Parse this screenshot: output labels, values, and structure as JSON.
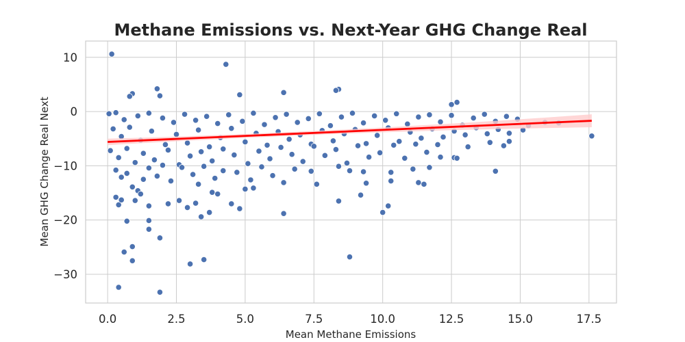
{
  "chart_data": {
    "type": "scatter",
    "title": "Methane Emissions vs. Next-Year GHG Change Real",
    "xlabel": "Mean Methane Emissions",
    "ylabel": "Mean GHG Change Real Next",
    "xlim": [
      -0.8,
      18.5
    ],
    "ylim": [
      -35.3,
      13.0
    ],
    "xticks": [
      0.0,
      2.5,
      5.0,
      7.5,
      10.0,
      12.5,
      15.0,
      17.5
    ],
    "xtick_labels": [
      "0.0",
      "2.5",
      "5.0",
      "7.5",
      "10.0",
      "12.5",
      "15.0",
      "17.5"
    ],
    "yticks": [
      -30,
      -20,
      -10,
      0,
      10
    ],
    "ytick_labels": [
      "−30",
      "−20",
      "−10",
      "0",
      "10"
    ],
    "grid": true,
    "colors": {
      "points": "#4c72b0",
      "point_edge": "#ffffff",
      "trend": "#ff0000",
      "band": "#ffcccc",
      "grid": "#cccccc",
      "frame": "#cccccc"
    },
    "series": [
      {
        "points": [
          [
            0.15,
            10.6
          ],
          [
            4.3,
            8.7
          ],
          [
            1.8,
            4.2
          ],
          [
            1.9,
            2.9
          ],
          [
            0.9,
            3.3
          ],
          [
            0.8,
            2.8
          ],
          [
            4.8,
            3.1
          ],
          [
            6.4,
            3.5
          ],
          [
            8.4,
            4.1
          ],
          [
            8.3,
            3.9
          ],
          [
            12.7,
            1.7
          ],
          [
            12.5,
            1.3
          ],
          [
            0.05,
            -0.4
          ],
          [
            0.3,
            -0.2
          ],
          [
            0.6,
            -1.5
          ],
          [
            1.1,
            -0.8
          ],
          [
            1.5,
            -0.3
          ],
          [
            2.0,
            -1.2
          ],
          [
            2.4,
            -2.0
          ],
          [
            2.8,
            -0.5
          ],
          [
            3.2,
            -1.6
          ],
          [
            3.6,
            -0.9
          ],
          [
            4.0,
            -2.2
          ],
          [
            4.4,
            -0.6
          ],
          [
            4.9,
            -1.8
          ],
          [
            5.3,
            -0.3
          ],
          [
            5.7,
            -2.4
          ],
          [
            6.1,
            -1.1
          ],
          [
            6.5,
            -0.5
          ],
          [
            6.9,
            -2.0
          ],
          [
            7.3,
            -1.3
          ],
          [
            7.7,
            -0.4
          ],
          [
            8.1,
            -2.6
          ],
          [
            8.5,
            -1.0
          ],
          [
            8.9,
            -0.3
          ],
          [
            9.3,
            -2.1
          ],
          [
            9.7,
            -0.8
          ],
          [
            10.1,
            -1.6
          ],
          [
            10.5,
            -0.4
          ],
          [
            10.9,
            -2.3
          ],
          [
            11.3,
            -1.0
          ],
          [
            11.7,
            -0.6
          ],
          [
            12.1,
            -1.9
          ],
          [
            12.5,
            -0.7
          ],
          [
            12.9,
            -2.5
          ],
          [
            13.3,
            -1.2
          ],
          [
            13.7,
            -0.5
          ],
          [
            14.1,
            -1.8
          ],
          [
            14.5,
            -0.9
          ],
          [
            14.9,
            -1.4
          ],
          [
            15.3,
            -2.6
          ],
          [
            15.9,
            -2.0
          ],
          [
            16.4,
            -2.1
          ],
          [
            17.6,
            -4.5
          ],
          [
            0.2,
            -3.2
          ],
          [
            0.5,
            -4.6
          ],
          [
            0.8,
            -2.9
          ],
          [
            1.2,
            -5.3
          ],
          [
            1.6,
            -3.6
          ],
          [
            2.1,
            -6.1
          ],
          [
            2.5,
            -4.2
          ],
          [
            2.9,
            -5.8
          ],
          [
            3.3,
            -3.4
          ],
          [
            3.7,
            -6.5
          ],
          [
            4.1,
            -4.8
          ],
          [
            4.5,
            -3.1
          ],
          [
            5.0,
            -5.6
          ],
          [
            5.4,
            -4.0
          ],
          [
            5.8,
            -6.2
          ],
          [
            6.2,
            -3.7
          ],
          [
            6.6,
            -5.1
          ],
          [
            7.0,
            -4.3
          ],
          [
            7.4,
            -6.0
          ],
          [
            7.8,
            -3.5
          ],
          [
            8.2,
            -5.4
          ],
          [
            8.6,
            -4.1
          ],
          [
            9.0,
            -3.3
          ],
          [
            9.4,
            -5.9
          ],
          [
            9.8,
            -4.4
          ],
          [
            10.2,
            -3.0
          ],
          [
            10.6,
            -5.5
          ],
          [
            11.0,
            -3.8
          ],
          [
            11.4,
            -4.9
          ],
          [
            11.8,
            -3.2
          ],
          [
            12.2,
            -4.7
          ],
          [
            12.6,
            -3.6
          ],
          [
            13.0,
            -4.3
          ],
          [
            13.4,
            -3.0
          ],
          [
            13.8,
            -4.1
          ],
          [
            14.2,
            -3.3
          ],
          [
            14.6,
            -4.0
          ],
          [
            15.1,
            -3.4
          ],
          [
            0.1,
            -7.2
          ],
          [
            0.4,
            -8.5
          ],
          [
            0.7,
            -6.8
          ],
          [
            1.0,
            -9.4
          ],
          [
            1.3,
            -7.7
          ],
          [
            1.7,
            -8.9
          ],
          [
            2.2,
            -7.1
          ],
          [
            2.6,
            -9.8
          ],
          [
            3.0,
            -8.2
          ],
          [
            3.4,
            -7.4
          ],
          [
            3.8,
            -9.1
          ],
          [
            4.2,
            -6.9
          ],
          [
            4.6,
            -8.0
          ],
          [
            5.1,
            -9.6
          ],
          [
            5.5,
            -7.3
          ],
          [
            5.9,
            -8.7
          ],
          [
            6.3,
            -6.6
          ],
          [
            6.7,
            -7.9
          ],
          [
            7.1,
            -9.2
          ],
          [
            7.5,
            -6.4
          ],
          [
            7.9,
            -8.1
          ],
          [
            8.3,
            -7.0
          ],
          [
            8.7,
            -9.5
          ],
          [
            9.1,
            -6.3
          ],
          [
            9.5,
            -8.4
          ],
          [
            9.9,
            -7.6
          ],
          [
            10.4,
            -6.2
          ],
          [
            10.8,
            -8.6
          ],
          [
            11.2,
            -6.0
          ],
          [
            11.6,
            -7.5
          ],
          [
            12.0,
            -6.1
          ],
          [
            12.6,
            -8.5
          ],
          [
            13.1,
            -6.5
          ],
          [
            13.9,
            -5.7
          ],
          [
            14.4,
            -6.3
          ],
          [
            14.6,
            -5.5
          ],
          [
            0.3,
            -10.8
          ],
          [
            0.5,
            -12.1
          ],
          [
            0.7,
            -11.4
          ],
          [
            0.9,
            -13.9
          ],
          [
            1.1,
            -14.6
          ],
          [
            1.3,
            -12.5
          ],
          [
            1.5,
            -10.4
          ],
          [
            1.8,
            -11.9
          ],
          [
            2.0,
            -9.9
          ],
          [
            2.3,
            -12.8
          ],
          [
            2.7,
            -10.3
          ],
          [
            3.1,
            -11.6
          ],
          [
            3.3,
            -13.4
          ],
          [
            3.5,
            -10.1
          ],
          [
            3.9,
            -12.3
          ],
          [
            4.2,
            -10.9
          ],
          [
            4.7,
            -11.2
          ],
          [
            5.2,
            -12.6
          ],
          [
            5.6,
            -10.2
          ],
          [
            6.0,
            -11.8
          ],
          [
            6.4,
            -13.1
          ],
          [
            6.8,
            -10.6
          ],
          [
            7.4,
            -11.0
          ],
          [
            7.6,
            -13.4
          ],
          [
            8.4,
            -10.1
          ],
          [
            8.8,
            -10.9
          ],
          [
            9.3,
            -11.1
          ],
          [
            9.4,
            -13.2
          ],
          [
            10.3,
            -11.2
          ],
          [
            10.3,
            -12.8
          ],
          [
            11.1,
            -10.6
          ],
          [
            11.3,
            -13.1
          ],
          [
            11.5,
            -13.4
          ],
          [
            11.7,
            -10.3
          ],
          [
            12.1,
            -8.4
          ],
          [
            12.7,
            -8.6
          ],
          [
            14.1,
            -11.0
          ],
          [
            0.3,
            -15.8
          ],
          [
            0.4,
            -17.2
          ],
          [
            0.5,
            -16.3
          ],
          [
            0.7,
            -20.2
          ],
          [
            1.0,
            -16.4
          ],
          [
            1.2,
            -15.2
          ],
          [
            1.5,
            -17.4
          ],
          [
            1.5,
            -20.1
          ],
          [
            1.5,
            -21.7
          ],
          [
            1.9,
            -23.3
          ],
          [
            2.2,
            -17.0
          ],
          [
            2.6,
            -16.4
          ],
          [
            2.9,
            -17.7
          ],
          [
            3.2,
            -16.9
          ],
          [
            3.4,
            -19.4
          ],
          [
            3.7,
            -18.6
          ],
          [
            3.8,
            -14.9
          ],
          [
            4.0,
            -15.2
          ],
          [
            4.5,
            -17.0
          ],
          [
            4.8,
            -17.9
          ],
          [
            5.0,
            -14.3
          ],
          [
            5.3,
            -14.1
          ],
          [
            6.4,
            -18.8
          ],
          [
            8.4,
            -16.5
          ],
          [
            9.2,
            -15.4
          ],
          [
            10.0,
            -18.6
          ],
          [
            10.2,
            -17.4
          ],
          [
            0.6,
            -25.9
          ],
          [
            0.9,
            -24.9
          ],
          [
            0.9,
            -27.5
          ],
          [
            3.0,
            -28.1
          ],
          [
            3.5,
            -27.3
          ],
          [
            8.8,
            -26.8
          ],
          [
            0.4,
            -32.4
          ],
          [
            1.9,
            -33.3
          ]
        ]
      }
    ],
    "trend_line": {
      "x": [
        0.0,
        17.6
      ],
      "y": [
        -5.6,
        -1.7
      ]
    }
  }
}
